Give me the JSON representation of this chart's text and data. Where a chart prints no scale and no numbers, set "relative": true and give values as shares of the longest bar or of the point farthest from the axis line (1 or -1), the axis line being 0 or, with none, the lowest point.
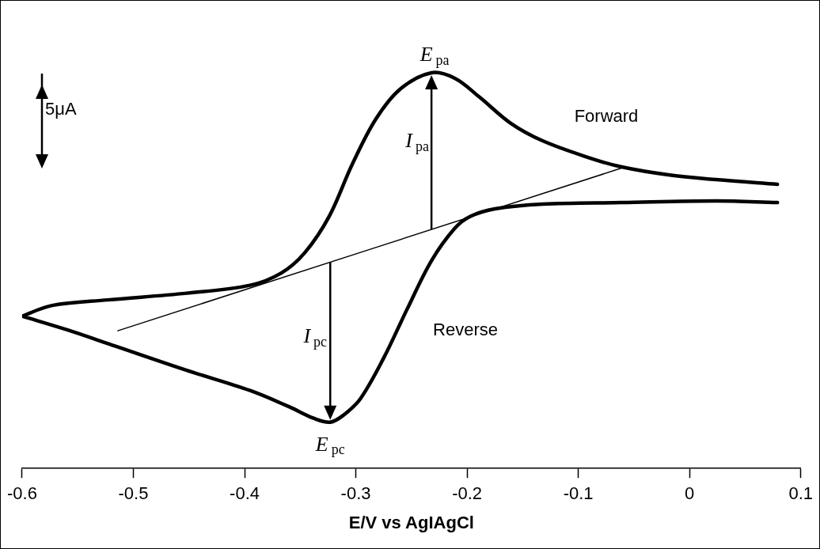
{
  "chart_data": {
    "type": "line",
    "xlabel": "E/V vs AgIAgCl",
    "relative": true,
    "xlim": [
      -0.6,
      0.1
    ],
    "xticks": [
      -0.6,
      -0.5,
      -0.4,
      -0.3,
      -0.2,
      -0.1,
      0,
      0.1
    ],
    "grid": false,
    "legend": false,
    "marker": "none",
    "line_style": "solid",
    "series": [
      {
        "color": "#000000",
        "x": [
          -0.6,
          -0.573,
          -0.523,
          -0.452,
          -0.395,
          -0.367,
          -0.346,
          -0.324,
          -0.303,
          -0.282,
          -0.26,
          -0.232,
          -0.211,
          -0.189,
          -0.161,
          -0.132,
          -0.09,
          -0.061,
          -0.019,
          0.024,
          0.079
        ],
        "values": [
          0.385,
          0.412,
          0.426,
          0.443,
          0.463,
          0.494,
          0.545,
          0.637,
          0.77,
          0.883,
          0.959,
          1.0,
          0.986,
          0.939,
          0.873,
          0.828,
          0.785,
          0.762,
          0.742,
          0.73,
          0.718
        ]
      },
      {
        "color": "#000000",
        "x": [
          0.079,
          0.024,
          -0.061,
          -0.132,
          -0.175,
          -0.197,
          -0.211,
          -0.232,
          -0.254,
          -0.275,
          -0.296,
          -0.311,
          -0.323,
          -0.338,
          -0.36,
          -0.395,
          -0.452,
          -0.516,
          -0.559,
          -0.6
        ],
        "values": [
          0.672,
          0.676,
          0.672,
          0.668,
          0.656,
          0.637,
          0.607,
          0.525,
          0.402,
          0.279,
          0.176,
          0.135,
          0.117,
          0.127,
          0.156,
          0.197,
          0.248,
          0.309,
          0.35,
          0.385
        ]
      },
      {
        "type": "line",
        "color": "#000000",
        "x": [
          -0.514,
          -0.058
        ],
        "values": [
          0.348,
          0.762
        ]
      }
    ],
    "annotations": [
      "5μA",
      "E$_{pa}$",
      "I$_{pa}$",
      "Forward",
      "Reverse",
      "I$_{pc}$",
      "E$_{pc}$"
    ]
  }
}
